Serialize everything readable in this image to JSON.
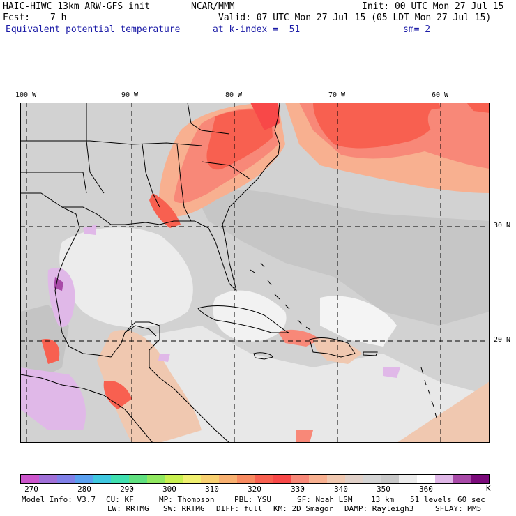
{
  "header": {
    "model_title": "HAIC-HIWC 13km ARW-GFS init",
    "org": "NCAR/MMM",
    "init": "Init: 00 UTC Mon 27 Jul 15",
    "fcst_label": "Fcst:",
    "fcst_value": "7 h",
    "valid": "Valid: 07 UTC Mon 27 Jul 15 (05 LDT Mon 27 Jul 15)",
    "field_name": "Equivalent potential temperature",
    "level": "at k-index =  51",
    "smoothing": "sm= 2"
  },
  "map": {
    "longitude_labels": [
      "100 W",
      "90 W",
      "80 W",
      "70 W",
      "60 W"
    ],
    "latitude_labels": [
      "30 N",
      "20 N"
    ],
    "region": "Gulf of Mexico, Caribbean and western Atlantic",
    "colors": {
      "land_border": "#000000",
      "gridline": "#000000"
    }
  },
  "colorbar": {
    "tick_labels": [
      "270",
      "280",
      "290",
      "300",
      "310",
      "320",
      "330",
      "340",
      "350",
      "360"
    ],
    "unit": "K",
    "colors": [
      "#cc55cc",
      "#a070d8",
      "#8080e8",
      "#5aa0f0",
      "#40c8e0",
      "#40e0b0",
      "#60e080",
      "#90e860",
      "#c8f050",
      "#f0f070",
      "#f8d070",
      "#f8b070",
      "#f88a60",
      "#f86050",
      "#f84848",
      "#f88878",
      "#f8b090",
      "#f0c8b0",
      "#e0d0c8",
      "#d4d4d4",
      "#c8c8c8",
      "#ececec",
      "#ffffff",
      "#e0b8e8",
      "#a84aa8",
      "#7a0a7a"
    ]
  },
  "footer": {
    "line1": [
      "Model Info: V3.7",
      "CU: KF",
      "MP: Thompson",
      "PBL: YSU",
      "SF: Noah LSM",
      "13 km",
      "51 levels",
      "60 sec"
    ],
    "line2": [
      "LW: RRTMG",
      "SW: RRTMG",
      "DIFF: full",
      "KM: 2D Smagor",
      "DAMP: Rayleigh3",
      "SFLAY: MM5"
    ]
  }
}
